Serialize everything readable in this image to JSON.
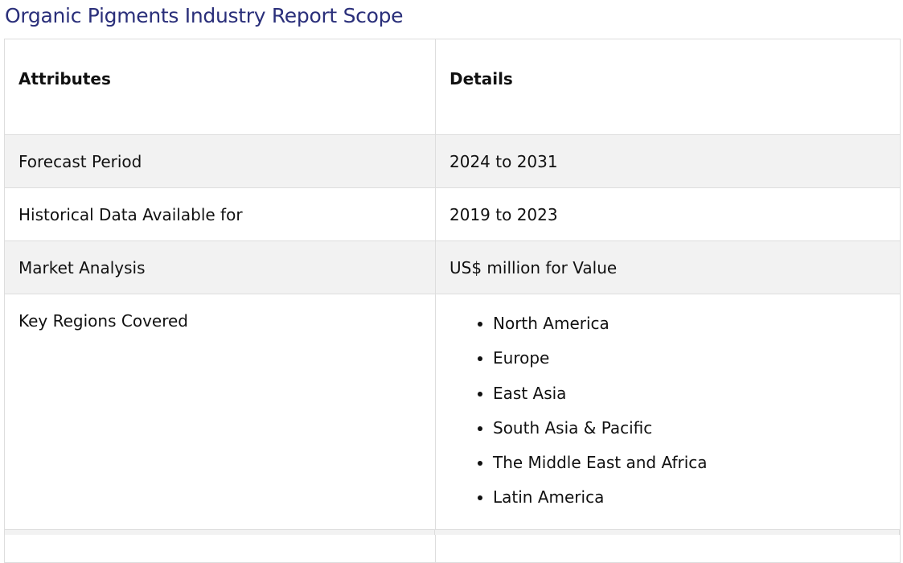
{
  "title": "Organic Pigments Industry Report Scope",
  "table": {
    "headers": [
      "Attributes",
      "Details"
    ],
    "rows": [
      {
        "attribute": "Forecast Period",
        "detail": "2024 to 2031"
      },
      {
        "attribute": "Historical Data Available for",
        "detail": "2019 to 2023"
      },
      {
        "attribute": "Market Analysis",
        "detail": "US$ million for Value"
      },
      {
        "attribute": "Key Regions Covered",
        "details": [
          "North America",
          "Europe",
          "East Asia",
          "South Asia & Pacific",
          "The Middle East and Africa",
          "Latin America"
        ]
      }
    ]
  },
  "colors": {
    "title": "#2a2f7a",
    "row_alt": "#f2f2f2",
    "border": "#dddddd"
  }
}
